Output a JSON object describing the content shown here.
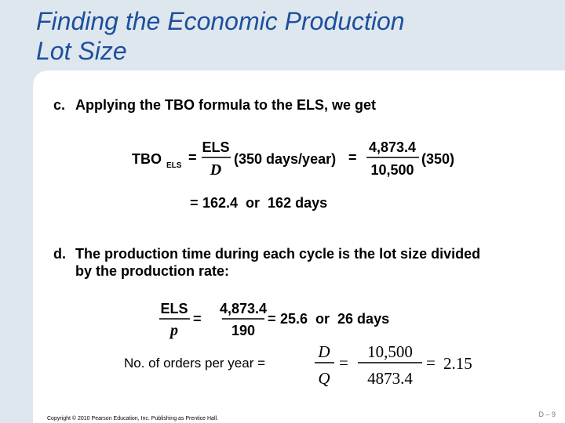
{
  "title": [
    "Finding the Economic Production",
    "Lot Size"
  ],
  "part_c": {
    "label": "c.",
    "text": "Applying the TBO formula to the ELS, we get",
    "eq1": {
      "lhs": "TBO",
      "lhs_sub": "ELS",
      "eq1": "=",
      "num1": "ELS",
      "den1": "D",
      "factor1": "(350 days/year)",
      "eq2": "=",
      "num2": "4,873.4",
      "den2": "10,500",
      "factor2": "(350)"
    },
    "eq2": {
      "eq": "=",
      "result": "162.4  or  162 days"
    }
  },
  "part_d": {
    "label": "d.",
    "lines": [
      "The production time during each cycle is the lot size divided",
      "by the production rate:"
    ],
    "eq": {
      "num1": "ELS",
      "den1": "p",
      "eq1": "=",
      "num2": "4,873.4",
      "den2": "190",
      "eq2": "=",
      "result": "25.6  or  26 days"
    }
  },
  "orders": {
    "label": "No. of orders per year =",
    "num1": "D",
    "den1": "Q",
    "eq1": "=",
    "num2": "10,500",
    "den2": "4873.4",
    "eq2": "=",
    "result": "2.15"
  },
  "footer": {
    "copyright": "Copyright © 2010 Pearson Education, Inc. Publishing as Prentice Hall.",
    "page": "D – 9"
  }
}
